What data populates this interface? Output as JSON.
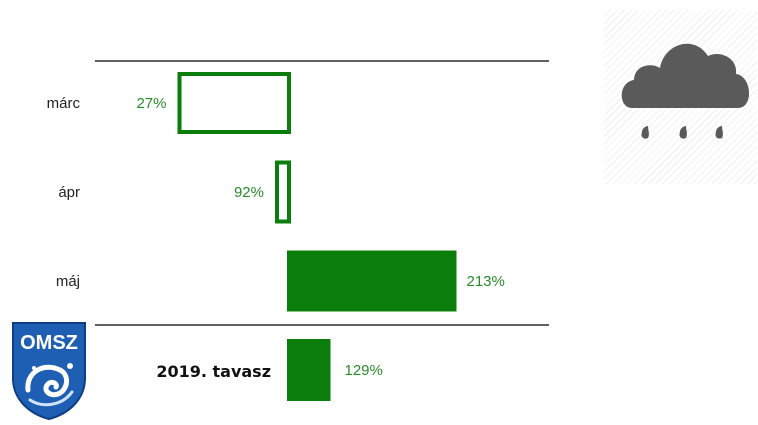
{
  "chart_data": {
    "type": "bar",
    "subtype": "deviation-from-100-percent",
    "baseline_percent": 100,
    "categories": [
      "márc",
      "ápr",
      "máj"
    ],
    "values": [
      27,
      92,
      213
    ],
    "value_labels": [
      "27%",
      "92%",
      "213%"
    ],
    "below_baseline_style": "outline",
    "above_baseline_style": "filled",
    "total": {
      "label": "2019. tavasz",
      "value": 129,
      "value_label": "129%"
    },
    "colors": {
      "bar": "#0a7d0a",
      "text": "#2a8a2a"
    }
  },
  "weather_icon": "rain-cloud-icon",
  "logo": {
    "text": "OMSZ",
    "icon": "omsz-logo-icon",
    "colors": {
      "shield": "#1e5fb4",
      "edge": "#0e3f86"
    }
  }
}
